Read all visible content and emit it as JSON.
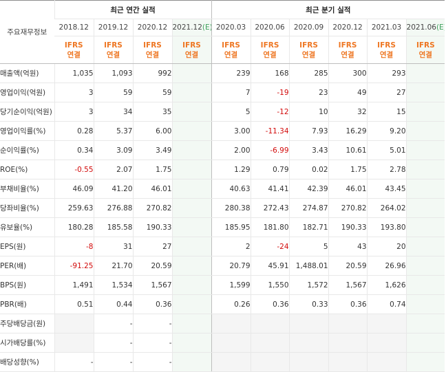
{
  "header": {
    "main_label": "주요재무정보",
    "annual_label": "최근 연간 실적",
    "quarter_label": "최근 분기 실적",
    "estimate_mark": "(E)",
    "annual_periods": [
      "2018.12",
      "2019.12",
      "2020.12",
      "2021.12"
    ],
    "quarter_periods": [
      "2020.03",
      "2020.06",
      "2020.09",
      "2020.12",
      "2021.03",
      "2021.06"
    ],
    "ifrs_line1": "IFRS",
    "ifrs_line2": "연결"
  },
  "rows": [
    {
      "label": "매출액(억원)",
      "annual": [
        "1,035",
        "1,093",
        "992",
        ""
      ],
      "quarter": [
        "239",
        "168",
        "285",
        "300",
        "293",
        ""
      ]
    },
    {
      "label": "영업이익(억원)",
      "annual": [
        "3",
        "59",
        "59",
        ""
      ],
      "quarter": [
        "7",
        "-19",
        "23",
        "49",
        "27",
        ""
      ]
    },
    {
      "label": "당기순이익(억원)",
      "annual": [
        "3",
        "34",
        "35",
        ""
      ],
      "quarter": [
        "5",
        "-12",
        "10",
        "32",
        "15",
        ""
      ]
    },
    {
      "label": "영업이익률(%)",
      "annual": [
        "0.28",
        "5.37",
        "6.00",
        ""
      ],
      "quarter": [
        "3.00",
        "-11.34",
        "7.93",
        "16.29",
        "9.20",
        ""
      ]
    },
    {
      "label": "순이익률(%)",
      "annual": [
        "0.34",
        "3.09",
        "3.49",
        ""
      ],
      "quarter": [
        "2.00",
        "-6.99",
        "3.43",
        "10.61",
        "5.01",
        ""
      ]
    },
    {
      "label": "ROE(%)",
      "annual": [
        "-0.55",
        "2.07",
        "1.75",
        ""
      ],
      "quarter": [
        "1.29",
        "0.79",
        "0.02",
        "1.75",
        "2.78",
        ""
      ]
    },
    {
      "label": "부채비율(%)",
      "annual": [
        "46.09",
        "41.20",
        "46.01",
        ""
      ],
      "quarter": [
        "40.63",
        "41.41",
        "42.39",
        "46.01",
        "43.45",
        ""
      ]
    },
    {
      "label": "당좌비율(%)",
      "annual": [
        "259.63",
        "276.88",
        "270.82",
        ""
      ],
      "quarter": [
        "280.38",
        "272.43",
        "274.87",
        "270.82",
        "264.02",
        ""
      ]
    },
    {
      "label": "유보율(%)",
      "annual": [
        "180.28",
        "185.58",
        "190.33",
        ""
      ],
      "quarter": [
        "185.95",
        "181.80",
        "182.71",
        "190.33",
        "193.80",
        ""
      ]
    },
    {
      "label": "EPS(원)",
      "annual": [
        "-8",
        "31",
        "27",
        ""
      ],
      "quarter": [
        "2",
        "-24",
        "5",
        "43",
        "20",
        ""
      ]
    },
    {
      "label": "PER(배)",
      "annual": [
        "-91.25",
        "21.70",
        "20.59",
        ""
      ],
      "quarter": [
        "20.79",
        "45.91",
        "1,488.01",
        "20.59",
        "26.96",
        ""
      ]
    },
    {
      "label": "BPS(원)",
      "annual": [
        "1,491",
        "1,534",
        "1,567",
        ""
      ],
      "quarter": [
        "1,599",
        "1,550",
        "1,572",
        "1,567",
        "1,626",
        ""
      ]
    },
    {
      "label": "PBR(배)",
      "annual": [
        "0.51",
        "0.44",
        "0.36",
        ""
      ],
      "quarter": [
        "0.26",
        "0.36",
        "0.33",
        "0.36",
        "0.74",
        ""
      ]
    },
    {
      "label": "주당배당금(원)",
      "annual": [
        "",
        "-",
        "-",
        ""
      ],
      "quarter": [
        "",
        "",
        "",
        "",
        "",
        ""
      ]
    },
    {
      "label": "시가배당률(%)",
      "annual": [
        "",
        "-",
        "-",
        ""
      ],
      "quarter": [
        "",
        "",
        "",
        "",
        "",
        ""
      ]
    },
    {
      "label": "배당성향(%)",
      "annual": [
        "-",
        "-",
        "-",
        ""
      ],
      "quarter": [
        "",
        "",
        "",
        "",
        "",
        ""
      ]
    }
  ],
  "colors": {
    "negative": "#d20a0a",
    "ifrs": "#ee7622",
    "estimate_bg": "#f3f9f4",
    "empty_bg": "#f5f5f5",
    "estimate_mark": "#3ca05a"
  }
}
